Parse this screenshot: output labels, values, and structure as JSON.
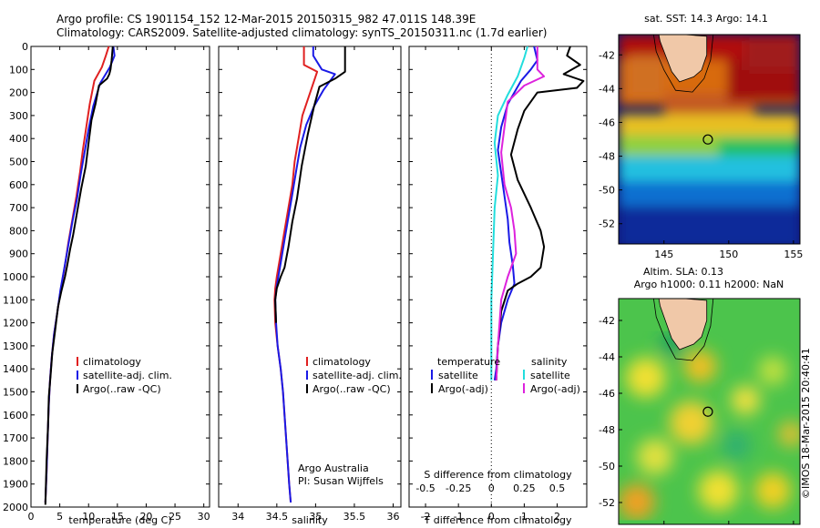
{
  "header": {
    "line1": "Argo profile: CS 1901154_152 12-Mar-2015 20150315_982 47.011S 148.39E",
    "line2": "Climatology: CARS2009. Satellite-adjusted climatology: synTS_20150311.nc (1.7d earlier)"
  },
  "colors": {
    "climatology": "#e02020",
    "satellite": "#1a1ae6",
    "argo": "#000000",
    "sat_salinity": "#22dddd",
    "argo_salinity": "#dd22dd"
  },
  "stamp": "©IMOS 18-Mar-2015 20:40:41",
  "credit": {
    "line1": "Argo Australia",
    "line2": "PI: Susan Wijffels"
  },
  "chart_data": [
    {
      "id": "temperature",
      "type": "line",
      "xlabel": "temperature (deg C)",
      "ylim": [
        2000,
        0
      ],
      "xlim": [
        0,
        31
      ],
      "xticks": [
        0,
        5,
        10,
        15,
        20,
        25,
        30
      ],
      "yticks": [
        0,
        100,
        200,
        300,
        400,
        500,
        600,
        700,
        800,
        900,
        1000,
        1100,
        1200,
        1300,
        1400,
        1500,
        1600,
        1700,
        1800,
        1900,
        2000
      ],
      "legend": [
        "climatology",
        "satellite-adj. clim.",
        "Argo(..raw -QC)"
      ],
      "series": [
        {
          "name": "climatology",
          "color": "#e02020",
          "points": [
            [
              13.5,
              0
            ],
            [
              13,
              40
            ],
            [
              12.3,
              90
            ],
            [
              11,
              150
            ],
            [
              10.2,
              250
            ],
            [
              9.6,
              350
            ],
            [
              9,
              450
            ],
            [
              8.5,
              550
            ],
            [
              7.9,
              650
            ],
            [
              7.2,
              750
            ],
            [
              6.5,
              850
            ],
            [
              5.9,
              950
            ],
            [
              5.2,
              1050
            ],
            [
              4.6,
              1150
            ],
            [
              4,
              1250
            ],
            [
              3.6,
              1350
            ],
            [
              3.3,
              1450
            ],
            [
              3.1,
              1550
            ],
            [
              2.9,
              1700
            ],
            [
              2.7,
              1850
            ],
            [
              2.5,
              1980
            ]
          ]
        },
        {
          "name": "satellite-adj. clim.",
          "color": "#1a1ae6",
          "points": [
            [
              14.3,
              0
            ],
            [
              14.5,
              40
            ],
            [
              13.7,
              90
            ],
            [
              12,
              160
            ],
            [
              10.8,
              260
            ],
            [
              10,
              360
            ],
            [
              9.3,
              460
            ],
            [
              8.6,
              560
            ],
            [
              8,
              660
            ],
            [
              7.2,
              760
            ],
            [
              6.5,
              860
            ],
            [
              5.8,
              960
            ],
            [
              5.1,
              1060
            ],
            [
              4.6,
              1150
            ],
            [
              4,
              1250
            ],
            [
              3.6,
              1350
            ],
            [
              3.3,
              1450
            ],
            [
              3.1,
              1550
            ],
            [
              2.9,
              1700
            ],
            [
              2.7,
              1850
            ],
            [
              2.5,
              1980
            ]
          ]
        },
        {
          "name": "Argo(..raw -QC)",
          "color": "#000000",
          "points": [
            [
              14.2,
              0
            ],
            [
              14,
              60
            ],
            [
              13.8,
              100
            ],
            [
              13.6,
              120
            ],
            [
              13.2,
              140
            ],
            [
              11.8,
              170
            ],
            [
              11.2,
              250
            ],
            [
              10.5,
              320
            ],
            [
              10,
              420
            ],
            [
              9.5,
              520
            ],
            [
              8.7,
              620
            ],
            [
              8,
              720
            ],
            [
              7.3,
              820
            ],
            [
              6.8,
              880
            ],
            [
              6.3,
              950
            ],
            [
              5.9,
              1000
            ],
            [
              5.3,
              1060
            ],
            [
              4.7,
              1130
            ],
            [
              4.2,
              1230
            ],
            [
              3.7,
              1330
            ],
            [
              3.4,
              1430
            ],
            [
              3.1,
              1520
            ],
            [
              2.95,
              1650
            ],
            [
              2.7,
              1800
            ],
            [
              2.5,
              1990
            ]
          ]
        }
      ]
    },
    {
      "id": "salinity",
      "type": "line",
      "xlabel": "salinity",
      "ylim": [
        2000,
        0
      ],
      "xlim": [
        33.75,
        36.1
      ],
      "xticks": [
        34,
        34.5,
        35,
        35.5,
        36
      ],
      "legend": [
        "climatology",
        "satellite-adj. clim.",
        "Argo(..raw -QC)"
      ],
      "series": [
        {
          "name": "climatology",
          "color": "#e02020",
          "points": [
            [
              34.85,
              0
            ],
            [
              34.85,
              80
            ],
            [
              35.02,
              110
            ],
            [
              34.92,
              210
            ],
            [
              34.83,
              300
            ],
            [
              34.78,
              400
            ],
            [
              34.73,
              500
            ],
            [
              34.7,
              600
            ],
            [
              34.65,
              700
            ],
            [
              34.6,
              800
            ],
            [
              34.55,
              900
            ],
            [
              34.5,
              1000
            ],
            [
              34.48,
              1050
            ],
            [
              34.47,
              1100
            ],
            [
              34.48,
              1200
            ],
            [
              34.51,
              1300
            ],
            [
              34.55,
              1400
            ],
            [
              34.58,
              1500
            ],
            [
              34.6,
              1600
            ],
            [
              34.62,
              1700
            ],
            [
              34.64,
              1800
            ],
            [
              34.66,
              1900
            ],
            [
              34.68,
              1980
            ]
          ]
        },
        {
          "name": "satellite-adj. clim.",
          "color": "#1a1ae6",
          "points": [
            [
              34.97,
              0
            ],
            [
              34.97,
              40
            ],
            [
              35.08,
              100
            ],
            [
              35.25,
              120
            ],
            [
              35.1,
              190
            ],
            [
              34.98,
              260
            ],
            [
              34.88,
              340
            ],
            [
              34.8,
              440
            ],
            [
              34.75,
              540
            ],
            [
              34.7,
              640
            ],
            [
              34.65,
              740
            ],
            [
              34.6,
              840
            ],
            [
              34.55,
              940
            ],
            [
              34.5,
              1040
            ],
            [
              34.48,
              1100
            ],
            [
              34.49,
              1200
            ],
            [
              34.51,
              1300
            ],
            [
              34.55,
              1400
            ],
            [
              34.58,
              1500
            ],
            [
              34.6,
              1600
            ],
            [
              34.62,
              1700
            ],
            [
              34.64,
              1800
            ],
            [
              34.66,
              1900
            ],
            [
              34.68,
              1980
            ]
          ]
        },
        {
          "name": "Argo(..raw -QC)",
          "color": "#000000",
          "points": [
            [
              35.38,
              0
            ],
            [
              35.38,
              110
            ],
            [
              35.25,
              140
            ],
            [
              35.05,
              175
            ],
            [
              34.98,
              260
            ],
            [
              34.9,
              380
            ],
            [
              34.82,
              520
            ],
            [
              34.76,
              660
            ],
            [
              34.7,
              760
            ],
            [
              34.65,
              870
            ],
            [
              34.6,
              960
            ],
            [
              34.55,
              1000
            ],
            [
              34.5,
              1050
            ],
            [
              34.48,
              1100
            ],
            [
              34.49,
              1200
            ]
          ]
        }
      ]
    },
    {
      "id": "difference",
      "type": "line",
      "xlabel": "T difference from climatology",
      "xlabel_top": "S difference from climatology",
      "ylim": [
        2000,
        0
      ],
      "xlim": [
        -2.5,
        2.9
      ],
      "xticks": [
        -2,
        -1,
        0,
        1,
        2
      ],
      "xticks_s": [
        "-0.5",
        "-0.25",
        "0",
        "0.25",
        "0.5"
      ],
      "legend_t": {
        "title": "temperature",
        "items": [
          "satellite",
          "Argo(-adj)"
        ]
      },
      "legend_s": {
        "title": "salinity",
        "items": [
          "satellite",
          "Argo(-adj)"
        ]
      },
      "series": [
        {
          "name": "T satellite",
          "color": "#1a1ae6",
          "points": [
            [
              1.3,
              0
            ],
            [
              1.4,
              60
            ],
            [
              1.2,
              100
            ],
            [
              0.9,
              150
            ],
            [
              0.5,
              250
            ],
            [
              0.3,
              350
            ],
            [
              0.2,
              450
            ],
            [
              0.3,
              550
            ],
            [
              0.4,
              650
            ],
            [
              0.5,
              750
            ],
            [
              0.55,
              850
            ],
            [
              0.65,
              950
            ],
            [
              0.7,
              1030
            ],
            [
              0.5,
              1100
            ],
            [
              0.3,
              1200
            ],
            [
              0.2,
              1300
            ],
            [
              0.15,
              1400
            ],
            [
              0.1,
              1450
            ]
          ]
        },
        {
          "name": "T Argo(-adj)",
          "color": "#000000",
          "points": [
            [
              2.4,
              0
            ],
            [
              2.3,
              40
            ],
            [
              2.7,
              80
            ],
            [
              2.2,
              120
            ],
            [
              2.8,
              150
            ],
            [
              2.6,
              180
            ],
            [
              1.4,
              200
            ],
            [
              1.0,
              280
            ],
            [
              0.8,
              360
            ],
            [
              0.6,
              470
            ],
            [
              0.8,
              580
            ],
            [
              1.2,
              700
            ],
            [
              1.5,
              800
            ],
            [
              1.6,
              870
            ],
            [
              1.5,
              960
            ],
            [
              1.2,
              1000
            ],
            [
              0.8,
              1030
            ],
            [
              0.5,
              1060
            ],
            [
              0.3,
              1150
            ],
            [
              0.2,
              1300
            ],
            [
              0.15,
              1450
            ]
          ]
        },
        {
          "name": "S satellite",
          "color": "#22dddd",
          "points": [
            [
              1.1,
              0
            ],
            [
              1.0,
              50
            ],
            [
              0.8,
              130
            ],
            [
              0.5,
              210
            ],
            [
              0.2,
              300
            ],
            [
              0.1,
              420
            ],
            [
              0.2,
              560
            ],
            [
              0.1,
              700
            ],
            [
              0.05,
              900
            ],
            [
              0.0,
              1100
            ],
            [
              0.0,
              1450
            ]
          ]
        },
        {
          "name": "S Argo(-adj)",
          "color": "#dd22dd",
          "points": [
            [
              1.4,
              0
            ],
            [
              1.4,
              100
            ],
            [
              1.6,
              130
            ],
            [
              1.0,
              170
            ],
            [
              0.5,
              240
            ],
            [
              0.4,
              350
            ],
            [
              0.3,
              460
            ],
            [
              0.4,
              600
            ],
            [
              0.6,
              700
            ],
            [
              0.7,
              800
            ],
            [
              0.75,
              900
            ],
            [
              0.5,
              1000
            ],
            [
              0.3,
              1100
            ],
            [
              0.2,
              1300
            ],
            [
              0.15,
              1450
            ]
          ]
        }
      ]
    },
    {
      "id": "sst_map",
      "type": "heatmap",
      "title": "sat. SST: 14.3 Argo: 14.1",
      "xticks": [
        145,
        150,
        155
      ],
      "yticks": [
        -42,
        -44,
        -46,
        -48,
        -50,
        -52
      ],
      "xlim": [
        141.5,
        155.5
      ],
      "ylim": [
        -53.2,
        -40.8
      ],
      "argo_position": [
        148.39,
        -47.011
      ]
    },
    {
      "id": "sla_map",
      "type": "heatmap",
      "title": "Altim. SLA: 0.13",
      "subtitle": "Argo h1000: 0.11 h2000: NaN",
      "xticks": [
        145,
        150,
        155
      ],
      "yticks": [
        -42,
        -44,
        -46,
        -48,
        -50,
        -52
      ],
      "xlim": [
        141.5,
        155.5
      ],
      "ylim": [
        -53.2,
        -40.8
      ],
      "argo_position": [
        148.39,
        -47.011
      ]
    }
  ]
}
